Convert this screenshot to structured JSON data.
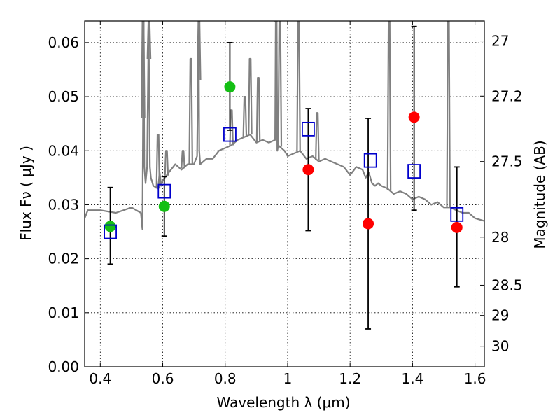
{
  "chart_data": {
    "type": "scatter",
    "xlabel": "Wavelength  λ (μm)",
    "ylabel": "Flux  Fν  ( μJy )",
    "ylabel_right": "Magnitude (AB)",
    "xlim": [
      0.35,
      1.63
    ],
    "ylim": [
      0.0,
      0.064
    ],
    "grid": true,
    "x_ticks": [
      0.4,
      0.6,
      0.8,
      1.0,
      1.2,
      1.4,
      1.6
    ],
    "x_tick_labels": [
      "0.4",
      "0.6",
      "0.8",
      "1",
      "1.2",
      "1.4",
      "1.6"
    ],
    "y_ticks": [
      0.0,
      0.01,
      0.02,
      0.03,
      0.04,
      0.05,
      0.06
    ],
    "y_tick_labels": [
      "0.00",
      "0.01",
      "0.02",
      "0.03",
      "0.04",
      "0.05",
      "0.06"
    ],
    "right_ticks": [
      {
        "label": "27",
        "flux": 0.0603
      },
      {
        "label": "27.2",
        "flux": 0.0501
      },
      {
        "label": "27.5",
        "flux": 0.038
      },
      {
        "label": "28",
        "flux": 0.024
      },
      {
        "label": "28.5",
        "flux": 0.0151
      },
      {
        "label": "29",
        "flux": 0.0095
      },
      {
        "label": "30",
        "flux": 0.0038
      }
    ],
    "series": [
      {
        "kind": "spectrum",
        "color": "#808080",
        "x": [
          0.35,
          0.36,
          0.4,
          0.45,
          0.5,
          0.53,
          0.535,
          0.537,
          0.539,
          0.541,
          0.545,
          0.55,
          0.555,
          0.557,
          0.559,
          0.562,
          0.57,
          0.585,
          0.59,
          0.595,
          0.6,
          0.62,
          0.64,
          0.66,
          0.68,
          0.7,
          0.71,
          0.715,
          0.717,
          0.72,
          0.74,
          0.76,
          0.78,
          0.8,
          0.82,
          0.84,
          0.86,
          0.88,
          0.9,
          0.92,
          0.94,
          0.96,
          0.962,
          0.965,
          0.967,
          0.97,
          0.98,
          0.99,
          1.0,
          1.02,
          1.04,
          1.06,
          1.08,
          1.1,
          1.12,
          1.14,
          1.16,
          1.18,
          1.2,
          1.22,
          1.24,
          1.25,
          1.26,
          1.27,
          1.28,
          1.29,
          1.3,
          1.32,
          1.34,
          1.36,
          1.38,
          1.4,
          1.42,
          1.44,
          1.46,
          1.48,
          1.5,
          1.52,
          1.54,
          1.56,
          1.58,
          1.6,
          1.63
        ],
        "y": [
          0.0275,
          0.029,
          0.029,
          0.0285,
          0.0295,
          0.0285,
          0.0255,
          0.046,
          0.066,
          0.037,
          0.034,
          0.037,
          0.066,
          0.048,
          0.037,
          0.035,
          0.0335,
          0.033,
          0.036,
          0.0335,
          0.0345,
          0.036,
          0.0375,
          0.0365,
          0.0375,
          0.0375,
          0.039,
          0.066,
          0.04,
          0.0375,
          0.0385,
          0.0385,
          0.04,
          0.0405,
          0.041,
          0.042,
          0.0425,
          0.043,
          0.0415,
          0.042,
          0.0415,
          0.042,
          0.066,
          0.066,
          0.04,
          0.041,
          0.0405,
          0.04,
          0.039,
          0.0395,
          0.04,
          0.0385,
          0.039,
          0.038,
          0.0385,
          0.038,
          0.0375,
          0.037,
          0.0355,
          0.037,
          0.0365,
          0.035,
          0.036,
          0.034,
          0.0335,
          0.034,
          0.0335,
          0.033,
          0.032,
          0.0325,
          0.032,
          0.031,
          0.0315,
          0.031,
          0.03,
          0.0305,
          0.0295,
          0.0295,
          0.029,
          0.0285,
          0.0285,
          0.0275,
          0.027
        ],
        "emission_lines": [
          {
            "x": 0.537,
            "peak": 0.066
          },
          {
            "x": 0.556,
            "peak": 0.066
          },
          {
            "x": 0.585,
            "peak": 0.043
          },
          {
            "x": 0.612,
            "peak": 0.04
          },
          {
            "x": 0.665,
            "peak": 0.04
          },
          {
            "x": 0.69,
            "peak": 0.057
          },
          {
            "x": 0.716,
            "peak": 0.066
          },
          {
            "x": 0.82,
            "peak": 0.0475
          },
          {
            "x": 0.863,
            "peak": 0.05
          },
          {
            "x": 0.88,
            "peak": 0.057
          },
          {
            "x": 0.906,
            "peak": 0.0535
          },
          {
            "x": 0.963,
            "peak": 0.066
          },
          {
            "x": 0.975,
            "peak": 0.066
          },
          {
            "x": 1.035,
            "peak": 0.066
          },
          {
            "x": 1.095,
            "peak": 0.047
          },
          {
            "x": 1.325,
            "peak": 0.066
          },
          {
            "x": 1.515,
            "peak": 0.066
          }
        ]
      },
      {
        "kind": "points",
        "marker": "circle",
        "color": "#14bf14",
        "x": [
          0.432,
          0.605,
          0.815
        ],
        "y": [
          0.026,
          0.0297,
          0.0518
        ],
        "err_low": [
          0.019,
          0.0242,
          0.0438
        ],
        "err_high": [
          0.0332,
          0.0352,
          0.06
        ]
      },
      {
        "kind": "points",
        "marker": "circle",
        "color": "#ff0000",
        "x": [
          1.066,
          1.258,
          1.405,
          1.542
        ],
        "y": [
          0.0365,
          0.0265,
          0.0462,
          0.0258
        ],
        "err_low": [
          0.0252,
          0.007,
          0.029,
          0.0148
        ],
        "err_high": [
          0.0478,
          0.046,
          0.063,
          0.037
        ]
      },
      {
        "kind": "points",
        "marker": "square-open",
        "color": "#0000cc",
        "x": [
          0.432,
          0.605,
          0.815,
          1.066,
          1.265,
          1.405,
          1.542
        ],
        "y": [
          0.025,
          0.0325,
          0.043,
          0.044,
          0.0382,
          0.0362,
          0.0282
        ]
      }
    ]
  }
}
